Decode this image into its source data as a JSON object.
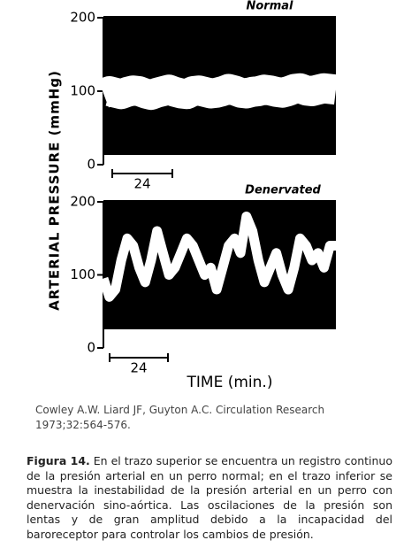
{
  "figure": {
    "ylabel": "ARTERIAL PRESSURE (mmHg)",
    "xlabel": "TIME (min.)"
  },
  "chart_data": [
    {
      "type": "line",
      "title": "Normal",
      "annotation": "24",
      "ylim": [
        0,
        200
      ],
      "yticks": [
        0,
        100,
        200
      ],
      "color": "#ffffff",
      "categories": [
        null,
        null,
        null,
        null,
        null,
        null,
        null,
        null,
        null,
        null,
        null,
        null,
        null,
        null,
        null,
        null,
        null,
        null,
        null,
        null,
        null,
        null,
        null,
        null,
        null,
        null,
        null,
        null,
        null,
        null,
        null,
        null,
        null,
        null,
        null,
        null,
        null,
        null,
        null,
        null
      ],
      "values": [
        97,
        100,
        98,
        96,
        99,
        101,
        100,
        97,
        95,
        98,
        100,
        102,
        99,
        97,
        96,
        100,
        101,
        99,
        97,
        98,
        100,
        103,
        101,
        98,
        97,
        99,
        100,
        102,
        101,
        99,
        98,
        100,
        103,
        104,
        101,
        100,
        102,
        104,
        103,
        102
      ]
    },
    {
      "type": "line",
      "title": "Denervated",
      "annotation": "24",
      "ylim": [
        0,
        200
      ],
      "yticks": [
        0,
        100,
        200
      ],
      "color": "#ffffff",
      "categories": [
        null,
        null,
        null,
        null,
        null,
        null,
        null,
        null,
        null,
        null,
        null,
        null,
        null,
        null,
        null,
        null,
        null,
        null,
        null,
        null,
        null,
        null,
        null,
        null,
        null,
        null,
        null,
        null,
        null,
        null,
        null,
        null,
        null,
        null,
        null,
        null,
        null,
        null,
        null,
        null
      ],
      "values": [
        95,
        70,
        80,
        120,
        150,
        140,
        110,
        90,
        120,
        160,
        130,
        100,
        110,
        130,
        150,
        140,
        120,
        100,
        110,
        80,
        110,
        140,
        150,
        130,
        180,
        160,
        120,
        90,
        110,
        130,
        100,
        80,
        110,
        150,
        140,
        120,
        130,
        110,
        140,
        140
      ]
    }
  ],
  "citation": [
    "Cowley A.W. Liard JF, Guyton A.C. Circulation Research",
    "1973;32:564-576."
  ],
  "caption": {
    "label": "Figura 14.",
    "text": " En el trazo superior se encuentra un registro continuo de la presión arterial en un perro normal; en el trazo inferior se muestra la inestabilidad de la presión arterial en un perro con denervación sino-aórtica. Las oscilaciones de la presión son lentas y de gran amplitud debido a la incapacidad del baroreceptor para controlar los cambios de presión."
  }
}
